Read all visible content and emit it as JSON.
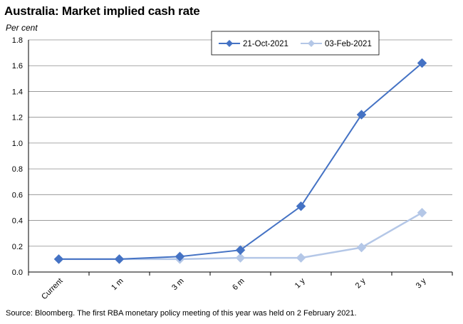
{
  "title": "Australia: Market implied cash rate",
  "unit_label": "Per cent",
  "source_note": "Source: Bloomberg. The first RBA monetary policy meeting of this year was held on 2 February 2021.",
  "chart_data": {
    "type": "line",
    "title": "Australia: Market implied cash rate",
    "ylabel": "Per cent",
    "categories": [
      "Current",
      "1 m",
      "3 m",
      "6 m",
      "1 y",
      "2 y",
      "3 y"
    ],
    "ylim": [
      0,
      1.8
    ],
    "yticks": [
      "0.0",
      "0.2",
      "0.4",
      "0.6",
      "0.8",
      "1.0",
      "1.2",
      "1.4",
      "1.6",
      "1.8"
    ],
    "grid": true,
    "legend_position": "top-right",
    "series": [
      {
        "name": "21-Oct-2021",
        "color": "#4472C4",
        "marker": "diamond",
        "values": [
          0.1,
          0.1,
          0.12,
          0.17,
          0.51,
          1.22,
          1.62
        ]
      },
      {
        "name": "03-Feb-2021",
        "color": "#B4C7E7",
        "marker": "diamond",
        "values": [
          0.1,
          0.1,
          0.1,
          0.11,
          0.11,
          0.19,
          0.46
        ]
      }
    ]
  }
}
